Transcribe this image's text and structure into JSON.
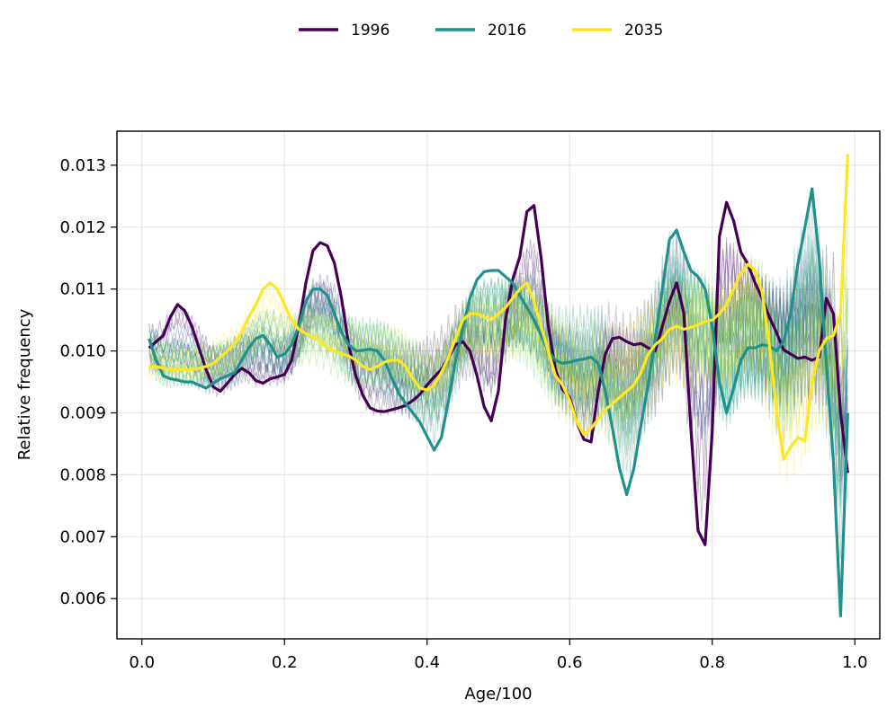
{
  "chart_data": {
    "type": "line",
    "xlabel": "Age/100",
    "ylabel": "Relative frequency",
    "xlim": [
      -0.035,
      1.035
    ],
    "ylim": [
      0.00535,
      0.01355
    ],
    "x_ticks": [
      "0.0",
      "0.2",
      "0.4",
      "0.6",
      "0.8",
      "1.0"
    ],
    "y_ticks": [
      "0.006",
      "0.007",
      "0.008",
      "0.009",
      "0.010",
      "0.011",
      "0.012",
      "0.013"
    ],
    "grid": true,
    "legend_position": "top-center",
    "background_series_colormap": "viridis",
    "background_series_note_hidden": true,
    "series": [
      {
        "name": "1996",
        "color": "#440154",
        "x": [
          0.01,
          0.02,
          0.03,
          0.04,
          0.05,
          0.06,
          0.07,
          0.08,
          0.09,
          0.1,
          0.11,
          0.12,
          0.13,
          0.14,
          0.15,
          0.16,
          0.17,
          0.18,
          0.19,
          0.2,
          0.21,
          0.22,
          0.23,
          0.24,
          0.25,
          0.26,
          0.27,
          0.28,
          0.29,
          0.3,
          0.31,
          0.32,
          0.33,
          0.34,
          0.35,
          0.36,
          0.37,
          0.38,
          0.39,
          0.4,
          0.41,
          0.42,
          0.43,
          0.44,
          0.45,
          0.46,
          0.47,
          0.48,
          0.49,
          0.5,
          0.51,
          0.52,
          0.53,
          0.54,
          0.55,
          0.56,
          0.57,
          0.58,
          0.59,
          0.6,
          0.61,
          0.62,
          0.63,
          0.64,
          0.65,
          0.66,
          0.67,
          0.68,
          0.69,
          0.7,
          0.71,
          0.72,
          0.73,
          0.74,
          0.75,
          0.76,
          0.77,
          0.78,
          0.79,
          0.8,
          0.81,
          0.82,
          0.83,
          0.84,
          0.85,
          0.86,
          0.87,
          0.88,
          0.89,
          0.9,
          0.91,
          0.92,
          0.93,
          0.94,
          0.95,
          0.96,
          0.97,
          0.98,
          0.99
        ],
        "y": [
          0.01005,
          0.01015,
          0.01025,
          0.01055,
          0.01075,
          0.01065,
          0.0104,
          0.01005,
          0.0097,
          0.00942,
          0.00935,
          0.00948,
          0.00962,
          0.00972,
          0.00965,
          0.00952,
          0.00948,
          0.00955,
          0.00958,
          0.00962,
          0.00985,
          0.0104,
          0.0111,
          0.01162,
          0.01175,
          0.0117,
          0.01142,
          0.01085,
          0.0101,
          0.0096,
          0.00928,
          0.00908,
          0.00903,
          0.00902,
          0.00905,
          0.00908,
          0.00912,
          0.0092,
          0.0093,
          0.00945,
          0.00958,
          0.0097,
          0.0099,
          0.0101,
          0.01015,
          0.01,
          0.0096,
          0.0091,
          0.00887,
          0.00935,
          0.0105,
          0.01115,
          0.01152,
          0.01225,
          0.01235,
          0.0115,
          0.0104,
          0.0097,
          0.00938,
          0.00925,
          0.00885,
          0.00857,
          0.00853,
          0.00935,
          0.00995,
          0.0102,
          0.01022,
          0.01015,
          0.0101,
          0.01012,
          0.01005,
          0.01,
          0.0104,
          0.0108,
          0.0111,
          0.01062,
          0.00875,
          0.0071,
          0.00687,
          0.0087,
          0.01185,
          0.0124,
          0.0121,
          0.0116,
          0.0114,
          0.0111,
          0.01085,
          0.01055,
          0.0103,
          0.01002,
          0.00995,
          0.00988,
          0.0099,
          0.00985,
          0.0099,
          0.01085,
          0.0106,
          0.009,
          0.00803
        ]
      },
      {
        "name": "2016",
        "color": "#21918c",
        "x": [
          0.01,
          0.02,
          0.03,
          0.04,
          0.05,
          0.06,
          0.07,
          0.08,
          0.09,
          0.1,
          0.11,
          0.12,
          0.13,
          0.14,
          0.15,
          0.16,
          0.17,
          0.18,
          0.19,
          0.2,
          0.21,
          0.22,
          0.23,
          0.24,
          0.25,
          0.26,
          0.27,
          0.28,
          0.29,
          0.3,
          0.31,
          0.32,
          0.33,
          0.34,
          0.35,
          0.36,
          0.37,
          0.38,
          0.39,
          0.4,
          0.41,
          0.42,
          0.43,
          0.44,
          0.45,
          0.46,
          0.47,
          0.48,
          0.49,
          0.5,
          0.51,
          0.52,
          0.53,
          0.54,
          0.55,
          0.56,
          0.57,
          0.58,
          0.59,
          0.6,
          0.61,
          0.62,
          0.63,
          0.64,
          0.65,
          0.66,
          0.67,
          0.68,
          0.69,
          0.7,
          0.71,
          0.72,
          0.73,
          0.74,
          0.75,
          0.76,
          0.77,
          0.78,
          0.79,
          0.8,
          0.81,
          0.82,
          0.83,
          0.84,
          0.85,
          0.86,
          0.87,
          0.88,
          0.89,
          0.9,
          0.91,
          0.92,
          0.93,
          0.94,
          0.95,
          0.96,
          0.97,
          0.98,
          0.99
        ],
        "y": [
          0.0102,
          0.00985,
          0.0096,
          0.00955,
          0.00953,
          0.0095,
          0.0095,
          0.00945,
          0.0094,
          0.00948,
          0.00955,
          0.0096,
          0.00965,
          0.00985,
          0.01005,
          0.0102,
          0.01025,
          0.0101,
          0.0099,
          0.00995,
          0.0101,
          0.0104,
          0.0108,
          0.011,
          0.011,
          0.0109,
          0.0106,
          0.0103,
          0.0101,
          0.01,
          0.01001,
          0.01003,
          0.01,
          0.00985,
          0.00958,
          0.00932,
          0.00915,
          0.009,
          0.00885,
          0.00862,
          0.0084,
          0.0086,
          0.0092,
          0.00985,
          0.01035,
          0.01085,
          0.01115,
          0.01128,
          0.0113,
          0.0113,
          0.0112,
          0.0111,
          0.0109,
          0.0107,
          0.0105,
          0.01025,
          0.01,
          0.00985,
          0.0098,
          0.00982,
          0.00985,
          0.00987,
          0.0099,
          0.0098,
          0.00935,
          0.00875,
          0.0081,
          0.00768,
          0.0081,
          0.0088,
          0.00945,
          0.0102,
          0.011,
          0.0118,
          0.01195,
          0.0116,
          0.0113,
          0.0112,
          0.011,
          0.0104,
          0.0095,
          0.009,
          0.0094,
          0.00985,
          0.01005,
          0.01005,
          0.0101,
          0.01008,
          0.01,
          0.01015,
          0.0106,
          0.0114,
          0.012,
          0.01262,
          0.0115,
          0.0098,
          0.0082,
          0.00572,
          0.009
        ]
      },
      {
        "name": "2035",
        "color": "#fde725",
        "x": [
          0.01,
          0.02,
          0.03,
          0.04,
          0.05,
          0.06,
          0.07,
          0.08,
          0.09,
          0.1,
          0.11,
          0.12,
          0.13,
          0.14,
          0.15,
          0.16,
          0.17,
          0.18,
          0.19,
          0.2,
          0.21,
          0.22,
          0.23,
          0.24,
          0.25,
          0.26,
          0.27,
          0.28,
          0.29,
          0.3,
          0.31,
          0.32,
          0.33,
          0.34,
          0.35,
          0.36,
          0.37,
          0.38,
          0.39,
          0.4,
          0.41,
          0.42,
          0.43,
          0.44,
          0.45,
          0.46,
          0.47,
          0.48,
          0.49,
          0.5,
          0.51,
          0.52,
          0.53,
          0.54,
          0.55,
          0.56,
          0.57,
          0.58,
          0.59,
          0.6,
          0.61,
          0.62,
          0.63,
          0.64,
          0.65,
          0.66,
          0.67,
          0.68,
          0.69,
          0.7,
          0.71,
          0.72,
          0.73,
          0.74,
          0.75,
          0.76,
          0.77,
          0.78,
          0.79,
          0.8,
          0.81,
          0.82,
          0.83,
          0.84,
          0.85,
          0.86,
          0.87,
          0.88,
          0.89,
          0.9,
          0.91,
          0.92,
          0.93,
          0.94,
          0.95,
          0.96,
          0.97,
          0.98,
          0.99
        ],
        "y": [
          0.00975,
          0.00975,
          0.00972,
          0.0097,
          0.0097,
          0.0097,
          0.0097,
          0.00972,
          0.00975,
          0.0098,
          0.0099,
          0.01,
          0.01012,
          0.0103,
          0.01055,
          0.01075,
          0.011,
          0.0111,
          0.011,
          0.01075,
          0.0105,
          0.01035,
          0.01028,
          0.01022,
          0.01015,
          0.01005,
          0.01,
          0.00995,
          0.00992,
          0.00985,
          0.00975,
          0.0097,
          0.00975,
          0.00982,
          0.00985,
          0.00985,
          0.00975,
          0.00955,
          0.0094,
          0.00937,
          0.00945,
          0.00965,
          0.0099,
          0.0102,
          0.0105,
          0.0106,
          0.0106,
          0.01055,
          0.0105,
          0.0106,
          0.0107,
          0.01085,
          0.011,
          0.0111,
          0.0108,
          0.0104,
          0.01,
          0.0096,
          0.00945,
          0.0092,
          0.00885,
          0.00865,
          0.00875,
          0.0089,
          0.00905,
          0.00915,
          0.00925,
          0.00935,
          0.00945,
          0.00965,
          0.00995,
          0.0101,
          0.0102,
          0.01035,
          0.0104,
          0.01035,
          0.01038,
          0.01042,
          0.01048,
          0.0105,
          0.0106,
          0.01075,
          0.011,
          0.01125,
          0.0114,
          0.0113,
          0.01095,
          0.0101,
          0.00905,
          0.00825,
          0.00845,
          0.0086,
          0.00855,
          0.0095,
          0.01,
          0.0102,
          0.01025,
          0.0106,
          0.01318
        ]
      }
    ]
  }
}
